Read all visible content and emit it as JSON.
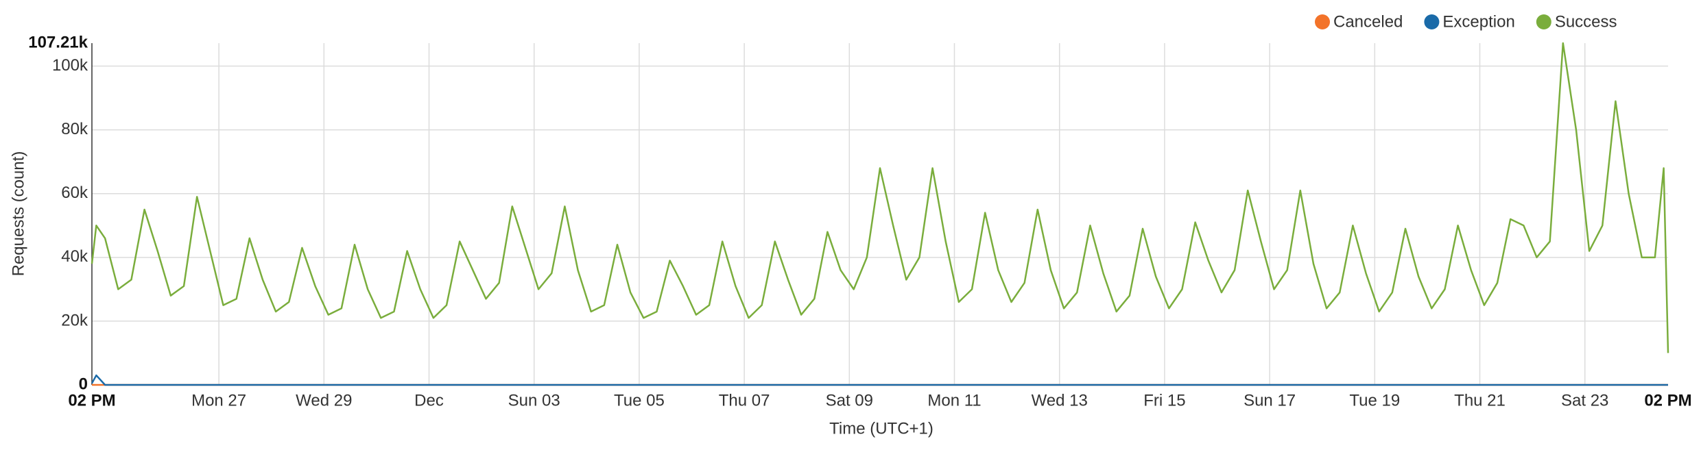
{
  "chart_data": {
    "type": "line",
    "x_label": "Time (UTC+1)",
    "y_label": "Requests (count)",
    "x": [
      "Fri 24 02 PM",
      "Fri 24 04 PM",
      "Fri 24 08 PM",
      "Sat 25 02 AM",
      "Sat 25 08 AM",
      "Sat 25 02 PM",
      "Sat 25 08 PM",
      "Sun 26 02 AM",
      "Sun 26 08 AM",
      "Sun 26 02 PM",
      "Sun 26 08 PM",
      "Mon 27 02 AM",
      "Mon 27 08 AM",
      "Mon 27 02 PM",
      "Mon 27 08 PM",
      "Tue 28 02 AM",
      "Tue 28 08 AM",
      "Tue 28 02 PM",
      "Tue 28 08 PM",
      "Wed 29 02 AM",
      "Wed 29 08 AM",
      "Wed 29 02 PM",
      "Wed 29 08 PM",
      "Thu 30 02 AM",
      "Thu 30 08 AM",
      "Thu 30 02 PM",
      "Thu 30 08 PM",
      "Fri 01 02 AM",
      "Fri 01 08 AM",
      "Fri 01 02 PM",
      "Fri 01 08 PM",
      "Sat 02 02 AM",
      "Sat 02 08 AM",
      "Sat 02 02 PM",
      "Sat 02 08 PM",
      "Sun 03 02 AM",
      "Sun 03 08 AM",
      "Sun 03 02 PM",
      "Sun 03 08 PM",
      "Mon 04 02 AM",
      "Mon 04 08 AM",
      "Mon 04 02 PM",
      "Mon 04 08 PM",
      "Tue 05 02 AM",
      "Tue 05 08 AM",
      "Tue 05 02 PM",
      "Tue 05 08 PM",
      "Wed 06 02 AM",
      "Wed 06 08 AM",
      "Wed 06 02 PM",
      "Wed 06 08 PM",
      "Thu 07 02 AM",
      "Thu 07 08 AM",
      "Thu 07 02 PM",
      "Thu 07 08 PM",
      "Fri 08 02 AM",
      "Fri 08 08 AM",
      "Fri 08 02 PM",
      "Fri 08 08 PM",
      "Sat 09 02 AM",
      "Sat 09 08 AM",
      "Sat 09 02 PM",
      "Sat 09 08 PM",
      "Sun 10 02 AM",
      "Sun 10 08 AM",
      "Sun 10 02 PM",
      "Sun 10 08 PM",
      "Mon 11 02 AM",
      "Mon 11 08 AM",
      "Mon 11 02 PM",
      "Mon 11 08 PM",
      "Tue 12 02 AM",
      "Tue 12 08 AM",
      "Tue 12 02 PM",
      "Tue 12 08 PM",
      "Wed 13 02 AM",
      "Wed 13 08 AM",
      "Wed 13 02 PM",
      "Wed 13 08 PM",
      "Thu 14 02 AM",
      "Thu 14 08 AM",
      "Thu 14 02 PM",
      "Thu 14 08 PM",
      "Fri 15 02 AM",
      "Fri 15 08 AM",
      "Fri 15 02 PM",
      "Fri 15 08 PM",
      "Sat 16 02 AM",
      "Sat 16 08 AM",
      "Sat 16 02 PM",
      "Sat 16 08 PM",
      "Sun 17 02 AM",
      "Sun 17 08 AM",
      "Sun 17 02 PM",
      "Sun 17 08 PM",
      "Mon 18 02 AM",
      "Mon 18 08 AM",
      "Mon 18 02 PM",
      "Mon 18 08 PM",
      "Tue 19 02 AM",
      "Tue 19 08 AM",
      "Tue 19 02 PM",
      "Tue 19 08 PM",
      "Wed 20 02 AM",
      "Wed 20 08 AM",
      "Wed 20 02 PM",
      "Wed 20 08 PM",
      "Thu 21 02 AM",
      "Thu 21 08 AM",
      "Thu 21 02 PM",
      "Thu 21 08 PM",
      "Fri 22 02 AM",
      "Fri 22 08 AM",
      "Fri 22 02 PM",
      "Fri 22 08 PM",
      "Sat 23 02 AM",
      "Sat 23 08 AM",
      "Sat 23 02 PM",
      "Sat 23 08 PM",
      "Sun 24 02 AM",
      "Sun 24 08 AM",
      "Sun 24 12 PM",
      "Sun 24 02 PM"
    ],
    "xlim": [
      "Fri 24 02 PM",
      "Sun 24 02 PM"
    ],
    "xticks": [
      {
        "value": "Fri 24 02 PM",
        "label": "02 PM"
      },
      {
        "value": "Mon 27 12 AM",
        "label": "Mon 27"
      },
      {
        "value": "Wed 29 12 AM",
        "label": "Wed 29"
      },
      {
        "value": "Fri 01 12 AM",
        "label": "Dec"
      },
      {
        "value": "Sun 03 12 AM",
        "label": "Sun 03"
      },
      {
        "value": "Tue 05 12 AM",
        "label": "Tue 05"
      },
      {
        "value": "Thu 07 12 AM",
        "label": "Thu 07"
      },
      {
        "value": "Sat 09 12 AM",
        "label": "Sat 09"
      },
      {
        "value": "Mon 11 12 AM",
        "label": "Mon 11"
      },
      {
        "value": "Wed 13 12 AM",
        "label": "Wed 13"
      },
      {
        "value": "Fri 15 12 AM",
        "label": "Fri 15"
      },
      {
        "value": "Sun 17 12 AM",
        "label": "Sun 17"
      },
      {
        "value": "Tue 19 12 AM",
        "label": "Tue 19"
      },
      {
        "value": "Thu 21 12 AM",
        "label": "Thu 21"
      },
      {
        "value": "Sat 23 12 AM",
        "label": "Sat 23"
      },
      {
        "value": "Sun 24 02 PM",
        "label": "02 PM"
      }
    ],
    "ylim": [
      0,
      107210
    ],
    "yticks": [
      0,
      {
        "value": 20000,
        "label": "20k"
      },
      {
        "value": 40000,
        "label": "40k"
      },
      {
        "value": 60000,
        "label": "60k"
      },
      {
        "value": 80000,
        "label": "80k"
      },
      {
        "value": 100000,
        "label": "100k"
      },
      {
        "value": 107210,
        "label": "107.21k"
      }
    ],
    "grid": true,
    "legend": "top-right",
    "series": [
      {
        "name": "Canceled",
        "color": "#f37329",
        "values": [
          0,
          0,
          0,
          0,
          0,
          0,
          0,
          0,
          0,
          0,
          0,
          0,
          0,
          0,
          0,
          0,
          0,
          0,
          0,
          0,
          0,
          0,
          0,
          0,
          0,
          0,
          0,
          0,
          0,
          0,
          0,
          0,
          0,
          0,
          0,
          0,
          0,
          0,
          0,
          0,
          0,
          0,
          0,
          0,
          0,
          0,
          0,
          0,
          0,
          0,
          0,
          0,
          0,
          0,
          0,
          0,
          0,
          0,
          0,
          0,
          0,
          0,
          0,
          0,
          0,
          0,
          0,
          0,
          0,
          0,
          0,
          0,
          0,
          0,
          0,
          0,
          0,
          0,
          0,
          0,
          0,
          0,
          0,
          0,
          0,
          0,
          0,
          0,
          0,
          0,
          0,
          0,
          0,
          0,
          0,
          0,
          0,
          0,
          0,
          0,
          0,
          0,
          0,
          0,
          0,
          0,
          0,
          0,
          0,
          0,
          0,
          0,
          0,
          0,
          0,
          0,
          0,
          0,
          0,
          0,
          0,
          0,
          0
        ]
      },
      {
        "name": "Exception",
        "color": "#1a6aa8",
        "values": [
          500,
          3000,
          0,
          0,
          0,
          0,
          0,
          0,
          0,
          0,
          0,
          0,
          0,
          0,
          0,
          0,
          0,
          0,
          0,
          0,
          0,
          0,
          0,
          0,
          0,
          0,
          0,
          0,
          0,
          0,
          0,
          0,
          0,
          0,
          0,
          0,
          0,
          0,
          0,
          0,
          0,
          0,
          0,
          0,
          0,
          0,
          0,
          0,
          0,
          0,
          0,
          0,
          0,
          0,
          0,
          0,
          0,
          0,
          0,
          0,
          0,
          0,
          0,
          0,
          0,
          0,
          0,
          0,
          0,
          0,
          0,
          0,
          0,
          0,
          0,
          0,
          0,
          0,
          0,
          0,
          0,
          0,
          0,
          0,
          0,
          0,
          0,
          0,
          0,
          0,
          0,
          0,
          0,
          0,
          0,
          0,
          0,
          0,
          0,
          0,
          0,
          0,
          0,
          0,
          0,
          0,
          0,
          0,
          0,
          0,
          0,
          0,
          0,
          0,
          0,
          0,
          0,
          0,
          0,
          0,
          0,
          0,
          0
        ]
      },
      {
        "name": "Success",
        "color": "#7aad3c",
        "values": [
          38000,
          50000,
          46000,
          30000,
          33000,
          55000,
          42000,
          28000,
          31000,
          59000,
          42000,
          25000,
          27000,
          46000,
          33000,
          23000,
          26000,
          43000,
          31000,
          22000,
          24000,
          44000,
          30000,
          21000,
          23000,
          42000,
          30000,
          21000,
          25000,
          45000,
          36000,
          27000,
          32000,
          56000,
          43000,
          30000,
          35000,
          56000,
          36000,
          23000,
          25000,
          44000,
          29000,
          21000,
          23000,
          39000,
          31000,
          22000,
          25000,
          45000,
          31000,
          21000,
          25000,
          45000,
          33000,
          22000,
          27000,
          48000,
          36000,
          30000,
          40000,
          68000,
          50000,
          33000,
          40000,
          68000,
          45000,
          26000,
          30000,
          54000,
          36000,
          26000,
          32000,
          55000,
          36000,
          24000,
          29000,
          50000,
          35000,
          23000,
          28000,
          49000,
          34000,
          24000,
          30000,
          51000,
          39000,
          29000,
          36000,
          61000,
          45000,
          30000,
          36000,
          61000,
          38000,
          24000,
          29000,
          50000,
          35000,
          23000,
          29000,
          49000,
          34000,
          24000,
          30000,
          50000,
          36000,
          25000,
          32000,
          52000,
          50000,
          40000,
          45000,
          107210,
          80000,
          42000,
          50000,
          89000,
          60000,
          40000,
          40000,
          68000,
          10000
        ]
      }
    ]
  }
}
